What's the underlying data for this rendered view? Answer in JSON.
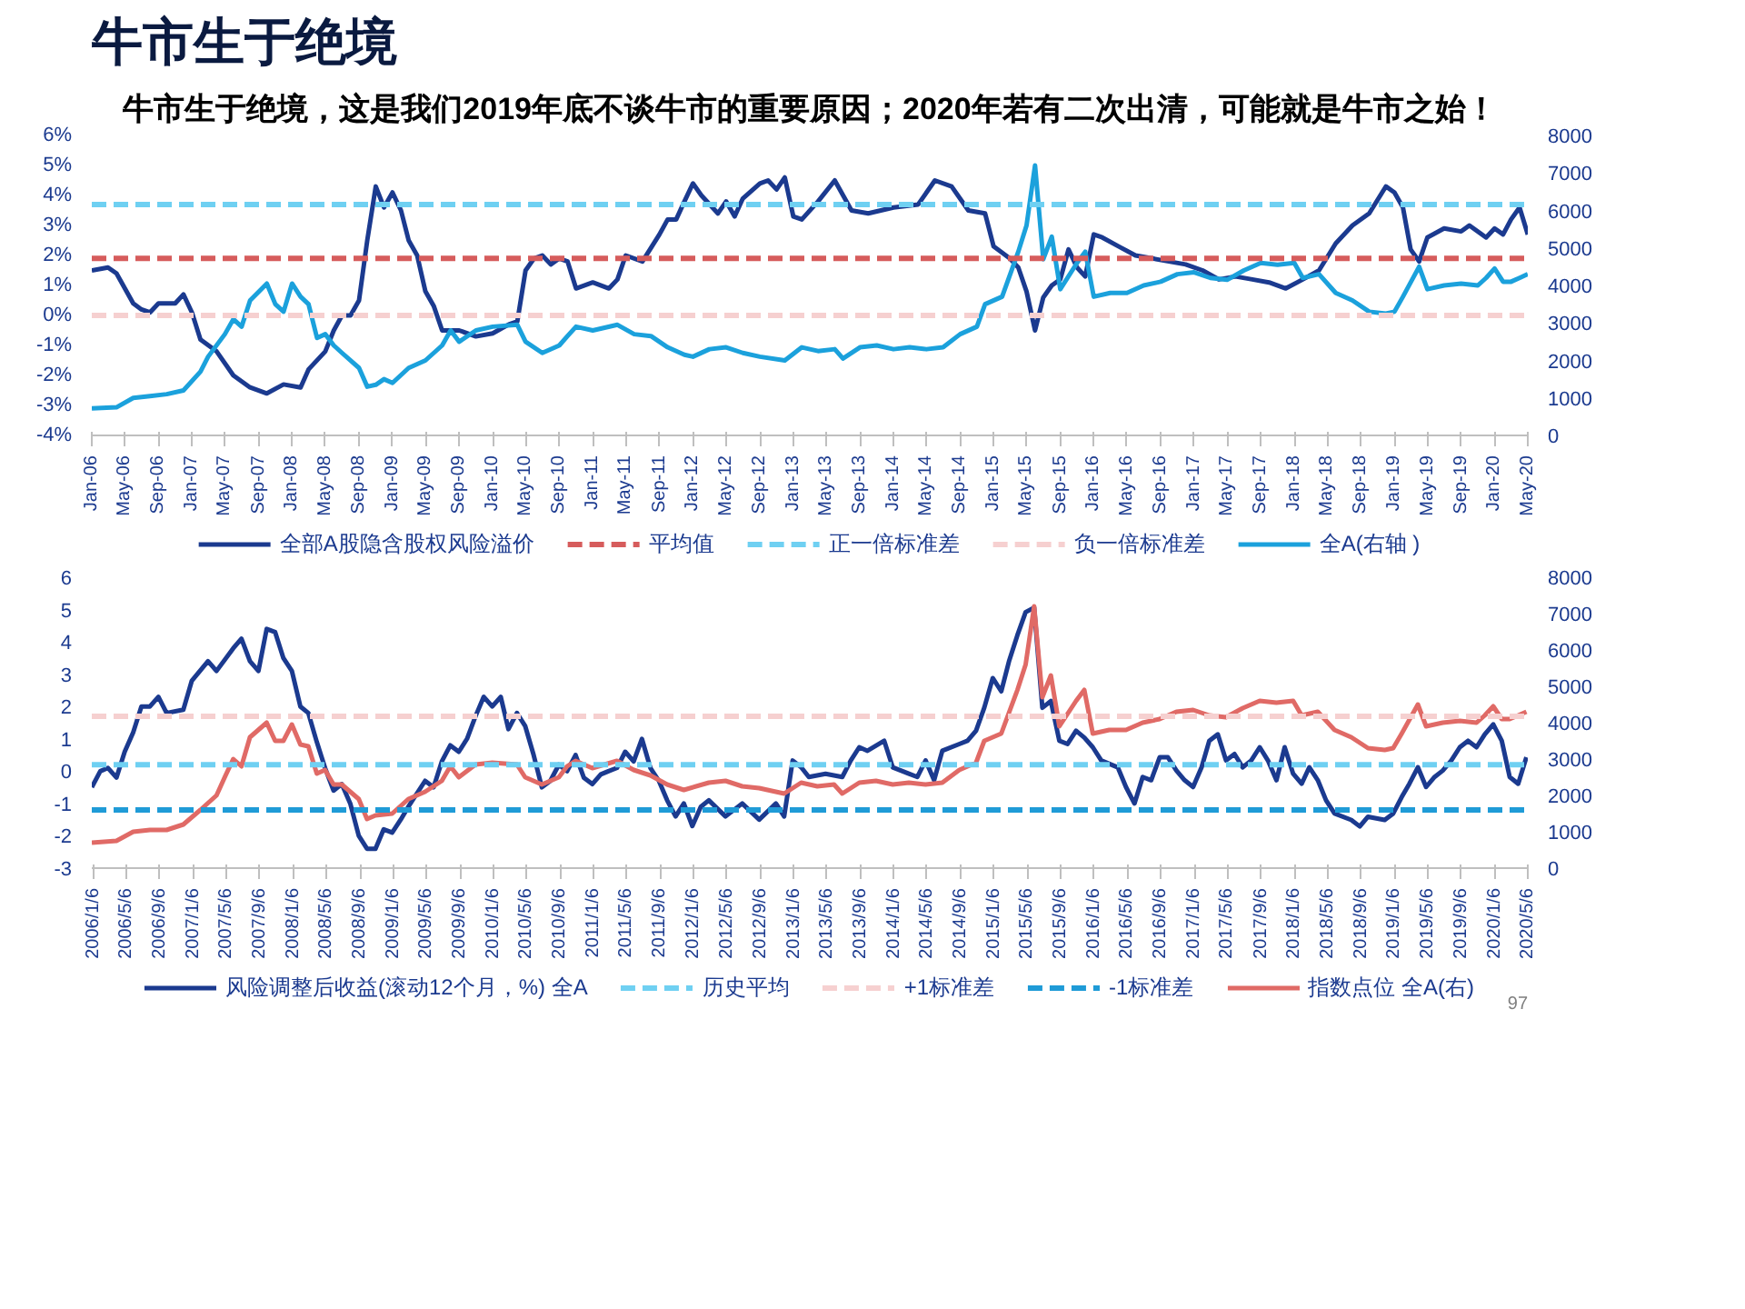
{
  "chart_data": [
    {
      "type": "line",
      "title": "牛市生于绝境",
      "subtitle": "牛市生于绝境，这是我们2019年底不谈牛市的重要原因；2020年若有二次出清，可能就是牛市之始！",
      "legend": "bottom",
      "grid": false,
      "line_style": "solid",
      "marker": "none",
      "xlim": [
        "2006-01",
        "2020-05"
      ],
      "xticks": [
        {
          "value": "2006-01",
          "label": "Jan-06"
        },
        {
          "value": "2006-05",
          "label": "May-06"
        },
        {
          "value": "2006-09",
          "label": "Sep-06"
        },
        {
          "value": "2007-01",
          "label": "Jan-07"
        },
        {
          "value": "2007-05",
          "label": "May-07"
        },
        {
          "value": "2007-09",
          "label": "Sep-07"
        },
        {
          "value": "2008-01",
          "label": "Jan-08"
        },
        {
          "value": "2008-05",
          "label": "May-08"
        },
        {
          "value": "2008-09",
          "label": "Sep-08"
        },
        {
          "value": "2009-01",
          "label": "Jan-09"
        },
        {
          "value": "2009-05",
          "label": "May-09"
        },
        {
          "value": "2009-09",
          "label": "Sep-09"
        },
        {
          "value": "2010-01",
          "label": "Jan-10"
        },
        {
          "value": "2010-05",
          "label": "May-10"
        },
        {
          "value": "2010-09",
          "label": "Sep-10"
        },
        {
          "value": "2011-01",
          "label": "Jan-11"
        },
        {
          "value": "2011-05",
          "label": "May-11"
        },
        {
          "value": "2011-09",
          "label": "Sep-11"
        },
        {
          "value": "2012-01",
          "label": "Jan-12"
        },
        {
          "value": "2012-05",
          "label": "May-12"
        },
        {
          "value": "2012-09",
          "label": "Sep-12"
        },
        {
          "value": "2013-01",
          "label": "Jan-13"
        },
        {
          "value": "2013-05",
          "label": "May-13"
        },
        {
          "value": "2013-09",
          "label": "Sep-13"
        },
        {
          "value": "2014-01",
          "label": "Jan-14"
        },
        {
          "value": "2014-05",
          "label": "May-14"
        },
        {
          "value": "2014-09",
          "label": "Sep-14"
        },
        {
          "value": "2015-01",
          "label": "Jan-15"
        },
        {
          "value": "2015-05",
          "label": "May-15"
        },
        {
          "value": "2015-09",
          "label": "Sep-15"
        },
        {
          "value": "2016-01",
          "label": "Jan-16"
        },
        {
          "value": "2016-05",
          "label": "May-16"
        },
        {
          "value": "2016-09",
          "label": "Sep-16"
        },
        {
          "value": "2017-01",
          "label": "Jan-17"
        },
        {
          "value": "2017-05",
          "label": "May-17"
        },
        {
          "value": "2017-09",
          "label": "Sep-17"
        },
        {
          "value": "2018-01",
          "label": "Jan-18"
        },
        {
          "value": "2018-05",
          "label": "May-18"
        },
        {
          "value": "2018-09",
          "label": "Sep-18"
        },
        {
          "value": "2019-01",
          "label": "Jan-19"
        },
        {
          "value": "2019-05",
          "label": "May-19"
        },
        {
          "value": "2019-09",
          "label": "Sep-19"
        },
        {
          "value": "2020-01",
          "label": "Jan-20"
        },
        {
          "value": "2020-05",
          "label": "May-20"
        }
      ],
      "ylim": [
        -4,
        6
      ],
      "yticks": [
        {
          "value": -4,
          "label": "-4%"
        },
        {
          "value": -3,
          "label": "-3%"
        },
        {
          "value": -2,
          "label": "-2%"
        },
        {
          "value": -1,
          "label": "-1%"
        },
        {
          "value": 0,
          "label": "0%"
        },
        {
          "value": 1,
          "label": "1%"
        },
        {
          "value": 2,
          "label": "2%"
        },
        {
          "value": 3,
          "label": "3%"
        },
        {
          "value": 4,
          "label": "4%"
        },
        {
          "value": 5,
          "label": "5%"
        },
        {
          "value": 6,
          "label": "6%"
        }
      ],
      "y2lim": [
        0,
        8000
      ],
      "y2ticks": [
        0,
        1000,
        2000,
        3000,
        4000,
        5000,
        6000,
        7000,
        8000
      ],
      "ref_lines": [
        {
          "axis": "y",
          "value": 1.9,
          "label": "平均值",
          "color": "#d65c5c",
          "line_style": "dashed"
        },
        {
          "axis": "y",
          "value": 3.7,
          "label": "正一倍标准差",
          "color": "#6fd0f2",
          "line_style": "dashed"
        },
        {
          "axis": "y",
          "value": 0,
          "label": "负一倍标准差",
          "color": "#f6d0d0",
          "line_style": "dashed"
        }
      ],
      "series": [
        {
          "name": "全部A股隐含股权风险溢价",
          "color": "#1b3a8f",
          "x": [
            "2006-01",
            "2006-03",
            "2006-04",
            "2006-06",
            "2006-07",
            "2006-08",
            "2006-09",
            "2006-11",
            "2006-12",
            "2007-01",
            "2007-02",
            "2007-04",
            "2007-06",
            "2007-08",
            "2007-10",
            "2007-12",
            "2008-02",
            "2008-03",
            "2008-05",
            "2008-06",
            "2008-07",
            "2008-08",
            "2008-09",
            "2008-10",
            "2008-11",
            "2008-12",
            "2009-01",
            "2009-02",
            "2009-03",
            "2009-04",
            "2009-05",
            "2009-06",
            "2009-07",
            "2009-09",
            "2009-11",
            "2010-01",
            "2010-03",
            "2010-04",
            "2010-05",
            "2010-06",
            "2010-07",
            "2010-08",
            "2010-09",
            "2010-10",
            "2010-11",
            "2011-01",
            "2011-03",
            "2011-04",
            "2011-05",
            "2011-07",
            "2011-09",
            "2011-10",
            "2011-11",
            "2011-12",
            "2012-01",
            "2012-02",
            "2012-04",
            "2012-05",
            "2012-06",
            "2012-07",
            "2012-09",
            "2012-10",
            "2012-11",
            "2012-12",
            "2013-01",
            "2013-02",
            "2013-04",
            "2013-06",
            "2013-08",
            "2013-10",
            "2014-01",
            "2014-04",
            "2014-06",
            "2014-08",
            "2014-10",
            "2014-12",
            "2015-01",
            "2015-03",
            "2015-04",
            "2015-05",
            "2015-06",
            "2015-07",
            "2015-08",
            "2015-09",
            "2015-10",
            "2015-11",
            "2015-12",
            "2016-01",
            "2016-02",
            "2016-04",
            "2016-06",
            "2016-08",
            "2016-10",
            "2016-12",
            "2017-02",
            "2017-04",
            "2017-06",
            "2017-08",
            "2017-10",
            "2017-12",
            "2018-02",
            "2018-04",
            "2018-06",
            "2018-08",
            "2018-10",
            "2018-12",
            "2019-01",
            "2019-02",
            "2019-03",
            "2019-04",
            "2019-05",
            "2019-07",
            "2019-09",
            "2019-10",
            "2019-12",
            "2020-01",
            "2020-02",
            "2020-03",
            "2020-04",
            "2020-05"
          ],
          "values": [
            1.5,
            1.6,
            1.4,
            0.4,
            0.2,
            0.1,
            0.4,
            0.4,
            0.7,
            0.1,
            -0.8,
            -1.2,
            -2.0,
            -2.4,
            -2.6,
            -2.3,
            -2.4,
            -1.8,
            -1.2,
            -0.5,
            0.0,
            0.0,
            0.5,
            2.5,
            4.3,
            3.6,
            4.1,
            3.5,
            2.5,
            2.0,
            0.8,
            0.3,
            -0.5,
            -0.5,
            -0.7,
            -0.6,
            -0.3,
            -0.2,
            1.5,
            1.9,
            2.0,
            1.7,
            1.9,
            1.8,
            0.9,
            1.1,
            0.9,
            1.2,
            2.0,
            1.8,
            2.7,
            3.2,
            3.2,
            3.8,
            4.4,
            4.0,
            3.4,
            3.8,
            3.3,
            3.9,
            4.4,
            4.5,
            4.2,
            4.6,
            3.3,
            3.2,
            3.8,
            4.5,
            3.5,
            3.4,
            3.6,
            3.7,
            4.5,
            4.3,
            3.5,
            3.4,
            2.3,
            1.9,
            1.6,
            0.8,
            -0.5,
            0.6,
            1.0,
            1.2,
            2.2,
            1.6,
            1.3,
            2.7,
            2.6,
            2.3,
            2.0,
            1.9,
            1.8,
            1.7,
            1.5,
            1.2,
            1.3,
            1.2,
            1.1,
            0.9,
            1.2,
            1.5,
            2.4,
            3.0,
            3.4,
            4.3,
            4.1,
            3.6,
            2.2,
            1.8,
            2.6,
            2.9,
            2.8,
            3.0,
            2.6,
            2.9,
            2.7,
            3.2,
            3.6,
            2.7
          ]
        },
        {
          "name": "全A(右轴 )",
          "color": "#1ba1dc",
          "axis": "y2",
          "x": [
            "2006-01",
            "2006-04",
            "2006-06",
            "2006-08",
            "2006-10",
            "2006-12",
            "2007-02",
            "2007-03",
            "2007-05",
            "2007-06",
            "2007-07",
            "2007-08",
            "2007-10",
            "2007-11",
            "2007-12",
            "2008-01",
            "2008-02",
            "2008-03",
            "2008-04",
            "2008-05",
            "2008-06",
            "2008-07",
            "2008-09",
            "2008-10",
            "2008-11",
            "2008-12",
            "2009-01",
            "2009-03",
            "2009-05",
            "2009-07",
            "2009-08",
            "2009-09",
            "2009-11",
            "2010-01",
            "2010-04",
            "2010-05",
            "2010-07",
            "2010-09",
            "2010-10",
            "2010-11",
            "2011-01",
            "2011-04",
            "2011-06",
            "2011-08",
            "2011-10",
            "2011-12",
            "2012-01",
            "2012-03",
            "2012-05",
            "2012-07",
            "2012-09",
            "2012-12",
            "2013-02",
            "2013-04",
            "2013-06",
            "2013-07",
            "2013-09",
            "2013-11",
            "2014-01",
            "2014-03",
            "2014-05",
            "2014-07",
            "2014-09",
            "2014-11",
            "2014-12",
            "2015-02",
            "2015-04",
            "2015-05",
            "2015-06",
            "2015-07",
            "2015-08",
            "2015-09",
            "2015-11",
            "2015-12",
            "2016-01",
            "2016-03",
            "2016-05",
            "2016-07",
            "2016-09",
            "2016-11",
            "2017-01",
            "2017-03",
            "2017-05",
            "2017-07",
            "2017-09",
            "2017-11",
            "2018-01",
            "2018-02",
            "2018-04",
            "2018-06",
            "2018-08",
            "2018-10",
            "2018-12",
            "2019-01",
            "2019-02",
            "2019-04",
            "2019-05",
            "2019-07",
            "2019-09",
            "2019-11",
            "2019-12",
            "2020-01",
            "2020-02",
            "2020-03",
            "2020-04",
            "2020-05"
          ],
          "values": [
            720,
            750,
            1000,
            1050,
            1100,
            1200,
            1700,
            2100,
            2700,
            3100,
            2900,
            3600,
            4050,
            3500,
            3300,
            4050,
            3700,
            3500,
            2600,
            2700,
            2400,
            2200,
            1800,
            1300,
            1350,
            1500,
            1400,
            1800,
            2000,
            2400,
            2800,
            2500,
            2800,
            2900,
            2950,
            2500,
            2200,
            2400,
            2650,
            2900,
            2800,
            2950,
            2700,
            2650,
            2350,
            2150,
            2100,
            2300,
            2350,
            2200,
            2100,
            2000,
            2350,
            2250,
            2300,
            2050,
            2350,
            2400,
            2300,
            2350,
            2300,
            2350,
            2700,
            2900,
            3500,
            3700,
            4900,
            5600,
            7200,
            4700,
            5300,
            3900,
            4600,
            4900,
            3700,
            3800,
            3800,
            4000,
            4100,
            4300,
            4350,
            4200,
            4150,
            4400,
            4600,
            4550,
            4600,
            4200,
            4300,
            3800,
            3600,
            3300,
            3250,
            3300,
            3700,
            4500,
            3900,
            4000,
            4050,
            4000,
            4200,
            4450,
            4100,
            4100,
            4200,
            4300
          ]
        }
      ]
    },
    {
      "type": "line",
      "legend": "bottom",
      "grid": false,
      "line_style": "solid",
      "marker": "none",
      "annotations": [
        "97"
      ],
      "xlim": [
        "2006-01",
        "2020-05-06"
      ],
      "xticks": [
        {
          "value": "2006-01-06",
          "label": "2006/1/6"
        },
        {
          "value": "2006-05-06",
          "label": "2006/5/6"
        },
        {
          "value": "2006-09-06",
          "label": "2006/9/6"
        },
        {
          "value": "2007-01-06",
          "label": "2007/1/6"
        },
        {
          "value": "2007-05-06",
          "label": "2007/5/6"
        },
        {
          "value": "2007-09-06",
          "label": "2007/9/6"
        },
        {
          "value": "2008-01-06",
          "label": "2008/1/6"
        },
        {
          "value": "2008-05-06",
          "label": "2008/5/6"
        },
        {
          "value": "2008-09-06",
          "label": "2008/9/6"
        },
        {
          "value": "2009-01-06",
          "label": "2009/1/6"
        },
        {
          "value": "2009-05-06",
          "label": "2009/5/6"
        },
        {
          "value": "2009-09-06",
          "label": "2009/9/6"
        },
        {
          "value": "2010-01-06",
          "label": "2010/1/6"
        },
        {
          "value": "2010-05-06",
          "label": "2010/5/6"
        },
        {
          "value": "2010-09-06",
          "label": "2010/9/6"
        },
        {
          "value": "2011-01-06",
          "label": "2011/1/6"
        },
        {
          "value": "2011-05-06",
          "label": "2011/5/6"
        },
        {
          "value": "2011-09-06",
          "label": "2011/9/6"
        },
        {
          "value": "2012-01-06",
          "label": "2012/1/6"
        },
        {
          "value": "2012-05-06",
          "label": "2012/5/6"
        },
        {
          "value": "2012-09-06",
          "label": "2012/9/6"
        },
        {
          "value": "2013-01-06",
          "label": "2013/1/6"
        },
        {
          "value": "2013-05-06",
          "label": "2013/5/6"
        },
        {
          "value": "2013-09-06",
          "label": "2013/9/6"
        },
        {
          "value": "2014-01-06",
          "label": "2014/1/6"
        },
        {
          "value": "2014-05-06",
          "label": "2014/5/6"
        },
        {
          "value": "2014-09-06",
          "label": "2014/9/6"
        },
        {
          "value": "2015-01-06",
          "label": "2015/1/6"
        },
        {
          "value": "2015-05-06",
          "label": "2015/5/6"
        },
        {
          "value": "2015-09-06",
          "label": "2015/9/6"
        },
        {
          "value": "2016-01-06",
          "label": "2016/1/6"
        },
        {
          "value": "2016-05-06",
          "label": "2016/5/6"
        },
        {
          "value": "2016-09-06",
          "label": "2016/9/6"
        },
        {
          "value": "2017-01-06",
          "label": "2017/1/6"
        },
        {
          "value": "2017-05-06",
          "label": "2017/5/6"
        },
        {
          "value": "2017-09-06",
          "label": "2017/9/6"
        },
        {
          "value": "2018-01-06",
          "label": "2018/1/6"
        },
        {
          "value": "2018-05-06",
          "label": "2018/5/6"
        },
        {
          "value": "2018-09-06",
          "label": "2018/9/6"
        },
        {
          "value": "2019-01-06",
          "label": "2019/1/6"
        },
        {
          "value": "2019-05-06",
          "label": "2019/5/6"
        },
        {
          "value": "2019-09-06",
          "label": "2019/9/6"
        },
        {
          "value": "2020-01-06",
          "label": "2020/1/6"
        },
        {
          "value": "2020-05-06",
          "label": "2020/5/6"
        }
      ],
      "ylim": [
        -3,
        6
      ],
      "yticks": [
        -3,
        -2,
        -1,
        0,
        1,
        2,
        3,
        4,
        5,
        6
      ],
      "y2lim": [
        0,
        8000
      ],
      "y2ticks": [
        0,
        1000,
        2000,
        3000,
        4000,
        5000,
        6000,
        7000,
        8000
      ],
      "ref_lines": [
        {
          "axis": "y",
          "value": 0.2,
          "label": "历史平均",
          "color": "#6fd0f2",
          "line_style": "dashed"
        },
        {
          "axis": "y",
          "value": 1.7,
          "label": "+1标准差",
          "color": "#f6d0d0",
          "line_style": "dashed"
        },
        {
          "axis": "y",
          "value": -1.2,
          "label": "-1标准差",
          "color": "#1f9bd7",
          "line_style": "dashed"
        }
      ],
      "series": [
        {
          "name": "风险调整后收益(滚动12个月，%) 全A",
          "color": "#1b3a8f",
          "x": [
            "2006-01",
            "2006-02",
            "2006-03",
            "2006-04",
            "2006-05",
            "2006-06",
            "2006-07",
            "2006-08",
            "2006-09",
            "2006-10",
            "2006-12",
            "2007-01",
            "2007-03",
            "2007-04",
            "2007-06",
            "2007-07",
            "2007-08",
            "2007-09",
            "2007-10",
            "2007-11",
            "2007-12",
            "2008-01",
            "2008-02",
            "2008-03",
            "2008-04",
            "2008-05",
            "2008-06",
            "2008-07",
            "2008-08",
            "2008-09",
            "2008-10",
            "2008-11",
            "2008-12",
            "2009-01",
            "2009-02",
            "2009-03",
            "2009-05",
            "2009-06",
            "2009-07",
            "2009-08",
            "2009-09",
            "2009-10",
            "2009-11",
            "2009-12",
            "2010-01",
            "2010-02",
            "2010-03",
            "2010-04",
            "2010-05",
            "2010-06",
            "2010-07",
            "2010-08",
            "2010-09",
            "2010-10",
            "2010-11",
            "2010-12",
            "2011-01",
            "2011-02",
            "2011-03",
            "2011-04",
            "2011-05",
            "2011-06",
            "2011-07",
            "2011-08",
            "2011-09",
            "2011-10",
            "2011-11",
            "2011-12",
            "2012-01",
            "2012-02",
            "2012-03",
            "2012-05",
            "2012-07",
            "2012-09",
            "2012-11",
            "2012-12",
            "2013-01",
            "2013-02",
            "2013-03",
            "2013-05",
            "2013-07",
            "2013-08",
            "2013-09",
            "2013-10",
            "2013-12",
            "2014-01",
            "2014-03",
            "2014-04",
            "2014-05",
            "2014-06",
            "2014-07",
            "2014-09",
            "2014-10",
            "2014-11",
            "2014-12",
            "2015-01",
            "2015-02",
            "2015-03",
            "2015-04",
            "2015-05",
            "2015-06",
            "2015-07",
            "2015-08",
            "2015-09",
            "2015-10",
            "2015-11",
            "2015-12",
            "2016-01",
            "2016-02",
            "2016-04",
            "2016-05",
            "2016-06",
            "2016-07",
            "2016-08",
            "2016-09",
            "2016-10",
            "2016-11",
            "2016-12",
            "2017-01",
            "2017-02",
            "2017-03",
            "2017-04",
            "2017-05",
            "2017-06",
            "2017-07",
            "2017-08",
            "2017-09",
            "2017-10",
            "2017-11",
            "2017-12",
            "2018-01",
            "2018-02",
            "2018-03",
            "2018-04",
            "2018-05",
            "2018-06",
            "2018-08",
            "2018-09",
            "2018-10",
            "2018-12",
            "2019-01",
            "2019-02",
            "2019-03",
            "2019-04",
            "2019-05",
            "2019-06",
            "2019-07",
            "2019-08",
            "2019-09",
            "2019-10",
            "2019-11",
            "2019-12",
            "2020-01",
            "2020-02",
            "2020-03",
            "2020-04",
            "2020-05"
          ],
          "values": [
            -0.5,
            0.0,
            0.1,
            -0.2,
            0.6,
            1.2,
            2.0,
            2.0,
            2.3,
            1.8,
            1.9,
            2.8,
            3.4,
            3.1,
            3.8,
            4.1,
            3.4,
            3.1,
            4.4,
            4.3,
            3.5,
            3.1,
            2.0,
            1.8,
            0.9,
            0.1,
            -0.6,
            -0.4,
            -1.0,
            -2.0,
            -2.4,
            -2.4,
            -1.8,
            -1.9,
            -1.5,
            -1.1,
            -0.3,
            -0.5,
            0.3,
            0.8,
            0.6,
            1.0,
            1.7,
            2.3,
            2.0,
            2.3,
            1.3,
            1.8,
            1.4,
            0.5,
            -0.5,
            -0.3,
            0.2,
            0.0,
            0.5,
            -0.2,
            -0.4,
            -0.1,
            0.0,
            0.1,
            0.6,
            0.3,
            1.0,
            0.1,
            -0.3,
            -0.9,
            -1.4,
            -1.0,
            -1.7,
            -1.1,
            -0.9,
            -1.4,
            -1.0,
            -1.5,
            -1.0,
            -1.4,
            0.33,
            0.12,
            -0.18,
            -0.08,
            -0.18,
            0.33,
            0.74,
            0.63,
            0.94,
            0.12,
            -0.08,
            -0.18,
            0.33,
            -0.28,
            0.63,
            0.84,
            0.94,
            1.25,
            1.96,
            2.88,
            2.47,
            3.39,
            4.21,
            4.92,
            5.06,
            1.96,
            2.17,
            0.94,
            0.84,
            1.25,
            1.04,
            0.74,
            0.33,
            0.12,
            -0.49,
            -1.0,
            -0.18,
            -0.28,
            0.43,
            0.43,
            0.02,
            -0.28,
            -0.49,
            0.12,
            0.94,
            1.14,
            0.33,
            0.53,
            0.12,
            0.33,
            0.74,
            0.33,
            -0.28,
            0.74,
            -0.08,
            -0.39,
            0.12,
            -0.28,
            -0.9,
            -1.31,
            -1.51,
            -1.71,
            -1.41,
            -1.51,
            -1.31,
            -0.8,
            -0.39,
            0.12,
            -0.49,
            -0.18,
            0.02,
            0.33,
            0.74,
            0.94,
            0.74,
            1.14,
            1.45,
            0.94,
            -0.18,
            -0.39,
            0.43
          ]
        },
        {
          "name": "指数点位 全A(右)",
          "color": "#e06a66",
          "axis": "y2",
          "x": [
            "2006-01",
            "2006-04",
            "2006-06",
            "2006-08",
            "2006-10",
            "2006-12",
            "2007-02",
            "2007-04",
            "2007-05",
            "2007-06",
            "2007-07",
            "2007-08",
            "2007-10",
            "2007-11",
            "2007-12",
            "2008-01",
            "2008-02",
            "2008-03",
            "2008-04",
            "2008-05",
            "2008-06",
            "2008-07",
            "2008-09",
            "2008-10",
            "2008-11",
            "2009-01",
            "2009-03",
            "2009-05",
            "2009-07",
            "2009-08",
            "2009-09",
            "2009-11",
            "2010-01",
            "2010-04",
            "2010-05",
            "2010-07",
            "2010-09",
            "2010-10",
            "2010-11",
            "2011-01",
            "2011-04",
            "2011-06",
            "2011-08",
            "2011-10",
            "2011-12",
            "2012-03",
            "2012-05",
            "2012-07",
            "2012-09",
            "2012-12",
            "2013-02",
            "2013-04",
            "2013-06",
            "2013-07",
            "2013-09",
            "2013-11",
            "2014-01",
            "2014-03",
            "2014-05",
            "2014-07",
            "2014-09",
            "2014-11",
            "2014-12",
            "2015-02",
            "2015-04",
            "2015-05",
            "2015-06",
            "2015-07",
            "2015-08",
            "2015-09",
            "2015-11",
            "2015-12",
            "2016-01",
            "2016-03",
            "2016-05",
            "2016-07",
            "2016-09",
            "2016-11",
            "2017-01",
            "2017-03",
            "2017-05",
            "2017-07",
            "2017-09",
            "2017-11",
            "2018-01",
            "2018-02",
            "2018-04",
            "2018-06",
            "2018-08",
            "2018-10",
            "2018-12",
            "2019-01",
            "2019-02",
            "2019-04",
            "2019-05",
            "2019-07",
            "2019-09",
            "2019-11",
            "2019-12",
            "2020-01",
            "2020-02",
            "2020-03",
            "2020-04",
            "2020-05"
          ],
          "values": [
            700,
            750,
            1000,
            1050,
            1050,
            1200,
            1600,
            2000,
            2500,
            3000,
            2800,
            3600,
            4000,
            3500,
            3500,
            3950,
            3400,
            3350,
            2600,
            2700,
            2300,
            2300,
            1900,
            1350,
            1450,
            1500,
            1900,
            2100,
            2400,
            2800,
            2500,
            2850,
            2900,
            2850,
            2500,
            2300,
            2500,
            2800,
            2950,
            2750,
            2950,
            2700,
            2550,
            2300,
            2150,
            2350,
            2400,
            2250,
            2200,
            2050,
            2350,
            2250,
            2300,
            2050,
            2350,
            2400,
            2300,
            2350,
            2300,
            2350,
            2700,
            2900,
            3500,
            3700,
            4900,
            5600,
            7200,
            4700,
            5300,
            3900,
            4600,
            4900,
            3700,
            3800,
            3800,
            4000,
            4100,
            4300,
            4350,
            4200,
            4150,
            4400,
            4600,
            4550,
            4600,
            4200,
            4300,
            3800,
            3600,
            3300,
            3250,
            3300,
            3700,
            4500,
            3900,
            4000,
            4050,
            4000,
            4200,
            4450,
            4100,
            4100,
            4200,
            4300
          ]
        }
      ]
    }
  ]
}
